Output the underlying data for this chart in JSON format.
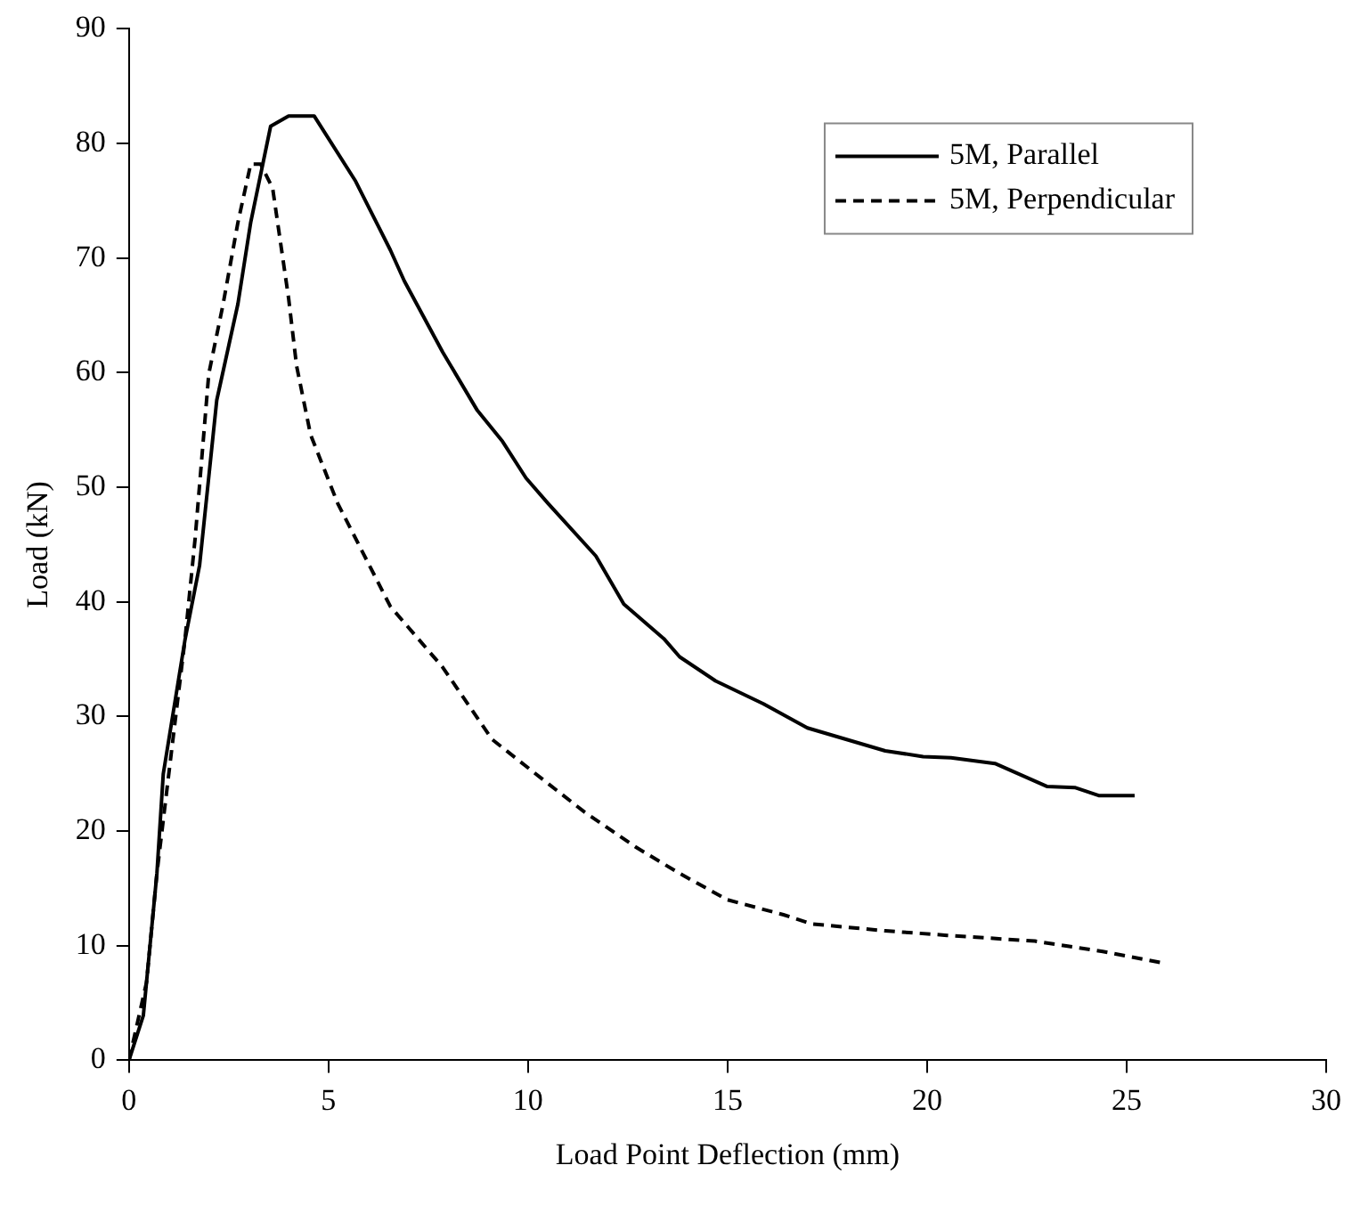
{
  "chart_data": {
    "type": "line",
    "xlabel": "Load Point Deflection (mm)",
    "ylabel": "Load (kN)",
    "xlim": [
      0,
      30
    ],
    "xticks": [
      0,
      5,
      10,
      15,
      20,
      25,
      30
    ],
    "ylim": [
      0,
      90
    ],
    "yticks": [
      0,
      10,
      20,
      30,
      40,
      50,
      60,
      70,
      80,
      90
    ],
    "grid": false,
    "legend": "top right",
    "marker": "none",
    "series": [
      {
        "name": "5M, Parallel",
        "color": "#000000",
        "line_style": "solid",
        "x": [
          0,
          0.36,
          0.7,
          0.86,
          1.4,
          1.77,
          2.2,
          2.73,
          3.05,
          3.55,
          4.0,
          4.64,
          5.68,
          6.55,
          6.9,
          7.86,
          8.73,
          9.36,
          9.95,
          10.5,
          11.7,
          12.4,
          13.4,
          13.8,
          14.7,
          15.9,
          17.0,
          18.95,
          19.9,
          20.6,
          21.7,
          23.0,
          23.7,
          24.3,
          25.2
        ],
        "values": [
          0,
          3.9,
          16.3,
          25,
          36.6,
          43.2,
          57.6,
          66,
          73.1,
          81.5,
          82.4,
          82.4,
          76.7,
          70.7,
          68,
          61.8,
          56.7,
          54,
          50.8,
          48.6,
          44,
          39.8,
          36.8,
          35.2,
          33.1,
          31.1,
          29,
          27,
          26.5,
          26.4,
          25.9,
          23.9,
          23.8,
          23.1,
          23.1
        ]
      },
      {
        "name": "5M, Perpendicular",
        "color": "#000000",
        "line_style": "dashed",
        "x": [
          0,
          0.44,
          0.7,
          1.05,
          1.4,
          1.66,
          2.0,
          2.36,
          2.73,
          3.05,
          3.3,
          3.6,
          4.0,
          4.2,
          4.55,
          5.23,
          6.55,
          7.86,
          9.1,
          10.3,
          11.4,
          12.7,
          13.8,
          15.0,
          16.4,
          17.1,
          18.95,
          20.5,
          22.7,
          24.4,
          25.9
        ],
        "values": [
          0,
          6.8,
          16.3,
          26.5,
          36.6,
          45.6,
          59.9,
          66,
          73.1,
          78.2,
          78.2,
          76.1,
          66.5,
          60.6,
          54.6,
          48.6,
          39.6,
          34.3,
          28,
          24.7,
          21.7,
          18.6,
          16.3,
          14,
          12.7,
          11.9,
          11.3,
          10.9,
          10.4,
          9.5,
          8.5
        ]
      }
    ]
  }
}
